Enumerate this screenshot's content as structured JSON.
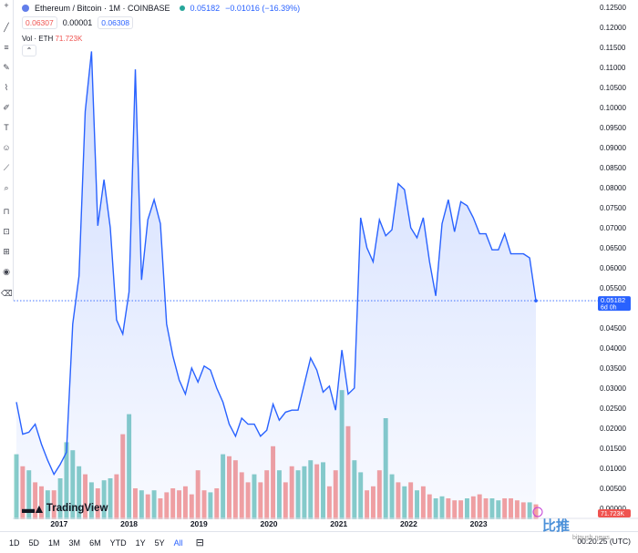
{
  "header": {
    "title": "Ethereum / Bitcoin · 1M · COINBASE",
    "last_price": "0.05182",
    "change": "−0.01016 (−16.39%)",
    "bid": "0.06307",
    "spread": "0.00001",
    "ask": "0.06308",
    "vol_label": "Vol · ETH",
    "vol_value": "71.723K",
    "collapse_glyph": "⌃"
  },
  "price_tag": {
    "value": "0.05182",
    "countdown": "6d 0h"
  },
  "vol_tag": "71.723K",
  "range_buttons": [
    {
      "label": "1D"
    },
    {
      "label": "5D"
    },
    {
      "label": "1M"
    },
    {
      "label": "3M"
    },
    {
      "label": "6M"
    },
    {
      "label": "YTD"
    },
    {
      "label": "1Y"
    },
    {
      "label": "5Y"
    },
    {
      "label": "All",
      "active": true
    }
  ],
  "clock": "00:20:25 (UTC)",
  "tv_logo_text": "TradingView",
  "watermark": "比推",
  "watermark_sub": "bitpush.news",
  "colors": {
    "line": "#2962ff",
    "up": "#26a69a",
    "down": "#ef5350"
  },
  "chart_data": {
    "type": "area",
    "yticks": [
      "0.12500",
      "0.12000",
      "0.11500",
      "0.11000",
      "0.10500",
      "0.10000",
      "0.09500",
      "0.09000",
      "0.08500",
      "0.08000",
      "0.07500",
      "0.07000",
      "0.06500",
      "0.06000",
      "0.05500",
      "0.05000",
      "0.04500",
      "0.04000",
      "0.03500",
      "0.03000",
      "0.02500",
      "0.02000",
      "0.01500",
      "0.01000",
      "0.00500",
      "0.00000"
    ],
    "ylim": [
      0,
      0.125
    ],
    "xlabels": [
      {
        "label": "2017",
        "t": 2017.0
      },
      {
        "label": "2018",
        "t": 2018.0
      },
      {
        "label": "2019",
        "t": 2019.0
      },
      {
        "label": "2020",
        "t": 2020.0
      },
      {
        "label": "2021",
        "t": 2021.0
      },
      {
        "label": "2022",
        "t": 2022.0
      },
      {
        "label": "2023",
        "t": 2023.0
      }
    ],
    "xlim": [
      2016.35,
      2023.95
    ],
    "price": [
      0.0265,
      0.0185,
      0.019,
      0.021,
      0.016,
      0.012,
      0.0085,
      0.011,
      0.014,
      0.046,
      0.058,
      0.099,
      0.114,
      0.0705,
      0.082,
      0.07,
      0.047,
      0.0435,
      0.054,
      0.1095,
      0.057,
      0.072,
      0.077,
      0.071,
      0.046,
      0.038,
      0.032,
      0.0285,
      0.035,
      0.0315,
      0.0355,
      0.0345,
      0.03,
      0.0265,
      0.021,
      0.018,
      0.0225,
      0.021,
      0.021,
      0.018,
      0.0195,
      0.026,
      0.022,
      0.024,
      0.0245,
      0.0245,
      0.031,
      0.0375,
      0.0345,
      0.029,
      0.0305,
      0.0245,
      0.0395,
      0.0285,
      0.03,
      0.0725,
      0.065,
      0.0615,
      0.072,
      0.068,
      0.0695,
      0.081,
      0.0795,
      0.07,
      0.0675,
      0.0725,
      0.0615,
      0.053,
      0.071,
      0.077,
      0.069,
      0.0765,
      0.0755,
      0.0725,
      0.0685,
      0.0685,
      0.0645,
      0.0645,
      0.0685,
      0.0635,
      0.0635,
      0.0635,
      0.0625,
      0.0518
    ],
    "volume": [
      0.0135,
      0.0105,
      0.0095,
      0.0065,
      0.0055,
      0.0045,
      0.0045,
      0.0075,
      0.0165,
      0.0145,
      0.0105,
      0.0085,
      0.0065,
      0.005,
      0.007,
      0.0075,
      0.0085,
      0.0185,
      0.0235,
      0.005,
      0.0045,
      0.0035,
      0.0045,
      0.0025,
      0.004,
      0.005,
      0.0045,
      0.0055,
      0.0035,
      0.0095,
      0.0045,
      0.004,
      0.005,
      0.0135,
      0.013,
      0.012,
      0.009,
      0.0065,
      0.0085,
      0.0065,
      0.0095,
      0.0155,
      0.0095,
      0.0065,
      0.0105,
      0.0095,
      0.0105,
      0.012,
      0.011,
      0.0115,
      0.0055,
      0.0095,
      0.0295,
      0.0205,
      0.012,
      0.009,
      0.0045,
      0.0055,
      0.0095,
      0.0225,
      0.0085,
      0.0065,
      0.0055,
      0.0065,
      0.0045,
      0.0055,
      0.0035,
      0.0025,
      0.003,
      0.0025,
      0.002,
      0.002,
      0.0025,
      0.003,
      0.0035,
      0.0025,
      0.0025,
      0.002,
      0.0025,
      0.0025,
      0.002,
      0.0015,
      0.0015,
      0.001
    ],
    "volume_up": [
      true,
      false,
      true,
      false,
      false,
      true,
      false,
      true,
      true,
      true,
      true,
      false,
      true,
      false,
      true,
      true,
      false,
      false,
      true,
      false,
      true,
      false,
      true,
      false,
      false,
      false,
      false,
      false,
      false,
      false,
      false,
      true,
      false,
      true,
      false,
      false,
      false,
      false,
      true,
      false,
      false,
      false,
      true,
      false,
      false,
      true,
      true,
      true,
      false,
      true,
      false,
      false,
      true,
      false,
      true,
      true,
      false,
      false,
      false,
      true,
      true,
      false,
      true,
      false,
      true,
      false,
      false,
      true,
      true,
      false,
      false,
      false,
      true,
      false,
      false,
      false,
      true,
      true,
      false,
      false,
      false,
      false,
      true,
      false
    ],
    "volume_ylim": [
      0,
      0.125
    ]
  }
}
